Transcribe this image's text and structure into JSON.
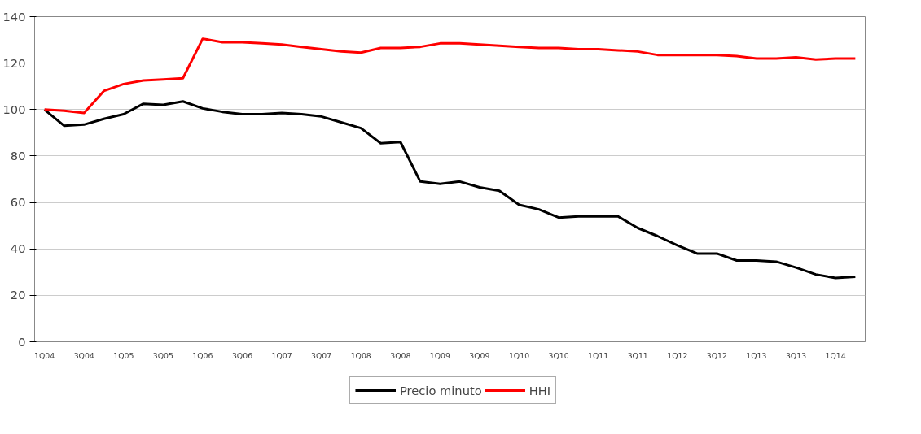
{
  "chart_data": {
    "type": "line",
    "categories": [
      "1Q04",
      null,
      "3Q04",
      null,
      "1Q05",
      null,
      "3Q05",
      null,
      "1Q06",
      null,
      "3Q06",
      null,
      "1Q07",
      null,
      "3Q07",
      null,
      "1Q08",
      null,
      "3Q08",
      null,
      "1Q09",
      null,
      "3Q09",
      null,
      "1Q10",
      null,
      "3Q10",
      null,
      "1Q11",
      null,
      "3Q11",
      null,
      "1Q12",
      null,
      "3Q12",
      null,
      "1Q13",
      null,
      "3Q13",
      null,
      "1Q14",
      null
    ],
    "series": [
      {
        "name": "Precio minuto",
        "color": "#000000",
        "values": [
          100,
          93,
          93.5,
          96,
          98,
          102.5,
          102,
          103.5,
          100.5,
          99,
          98,
          98,
          98.5,
          98,
          97,
          94.5,
          92,
          85.5,
          86,
          69,
          68,
          69,
          66.5,
          65,
          59,
          57,
          53.5,
          54,
          54,
          54,
          49,
          45.5,
          41.5,
          38,
          38,
          35,
          35,
          34.5,
          32,
          29,
          27.5,
          28
        ]
      },
      {
        "name": "HHI",
        "color": "#ff0000",
        "values": [
          100,
          99.5,
          98.5,
          108,
          111,
          112.5,
          113,
          113.5,
          130.5,
          129,
          129,
          128.5,
          128,
          127,
          126,
          125,
          124.5,
          126.5,
          126.5,
          127,
          128.5,
          128.5,
          128,
          127.5,
          127,
          126.5,
          126.5,
          126,
          126,
          125.5,
          125,
          123.5,
          123.5,
          123.5,
          123.5,
          123,
          122,
          122,
          122.5,
          121.5,
          122,
          122
        ]
      }
    ],
    "ylim": [
      0,
      140
    ],
    "yticks": [
      0,
      20,
      40,
      60,
      80,
      100,
      120,
      140
    ],
    "grid": "y",
    "legend": "bottom",
    "marker": "none",
    "line_style": "solid"
  }
}
